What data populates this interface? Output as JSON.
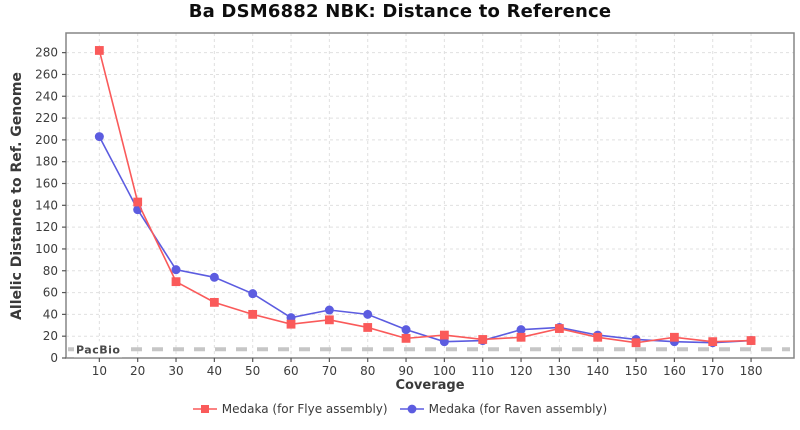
{
  "figure": {
    "title": "Ba DSM6882 NBK: Distance to Reference"
  },
  "chart_data": {
    "type": "line",
    "title": "Ba DSM6882 NBK: Distance to Reference",
    "xlabel": "Coverage",
    "ylabel": "Allelic Distance to Ref. Genome",
    "x": [
      10,
      20,
      30,
      40,
      50,
      60,
      70,
      80,
      90,
      100,
      110,
      120,
      130,
      140,
      150,
      160,
      170,
      180
    ],
    "x_ticks": [
      10,
      20,
      30,
      40,
      50,
      60,
      70,
      80,
      90,
      100,
      110,
      120,
      130,
      140,
      150,
      160,
      170,
      180
    ],
    "y_ticks": [
      0,
      20,
      40,
      60,
      80,
      100,
      120,
      140,
      160,
      180,
      200,
      220,
      240,
      260,
      280
    ],
    "xlim": [
      1.3,
      191.2
    ],
    "ylim": [
      0,
      298
    ],
    "grid": "dashed",
    "legend_position": "bottom-center",
    "series": [
      {
        "name": "Medaka (for Flye assembly)",
        "marker": "square",
        "color": "#fa5a5a",
        "values": [
          282,
          143,
          70,
          51,
          40,
          31,
          35,
          28,
          18,
          21,
          17,
          19,
          27,
          19,
          14,
          19,
          15,
          16
        ]
      },
      {
        "name": "Medaka (for Raven assembly)",
        "marker": "circle",
        "color": "#5c5ce0",
        "values": [
          203,
          136,
          81,
          74,
          59,
          37,
          44,
          40,
          26,
          15,
          16,
          26,
          28,
          21,
          17,
          15,
          14,
          16
        ]
      }
    ],
    "reference_line": {
      "label": "PacBio",
      "value": 8,
      "color": "#c6c6c6",
      "style": "dashed"
    },
    "style": {
      "grid_color": "#e0e0e0",
      "frame_color": "#858585",
      "tick_color": "#555555",
      "tick_label_color": "#3c3c3c"
    }
  }
}
